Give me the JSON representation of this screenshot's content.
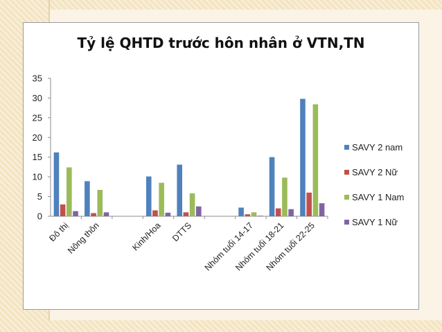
{
  "chart_data": {
    "type": "bar",
    "title": "Tỷ lệ QHTD trước hôn nhân ở VTN,TN",
    "categories": [
      "Đô thị",
      "Nông thôn",
      "",
      "Kinh/Hoa",
      "DTTS",
      "",
      "Nhóm tuổi 14-17",
      "Nhóm tuổi 18-21",
      "Nhóm tuổi 22-25"
    ],
    "series": [
      {
        "name": "SAVY 2 nam",
        "color": "#4f81bd",
        "values": [
          16.2,
          8.9,
          null,
          10.1,
          13.1,
          null,
          2.2,
          15.0,
          29.8
        ]
      },
      {
        "name": "SAVY 2 Nữ",
        "color": "#c0504d",
        "values": [
          3.0,
          0.8,
          null,
          1.5,
          1.0,
          null,
          0.5,
          2.0,
          6.0
        ]
      },
      {
        "name": "SAVY 1 Nam",
        "color": "#9bbb59",
        "values": [
          12.4,
          6.7,
          null,
          8.5,
          5.8,
          null,
          1.0,
          9.8,
          28.4
        ]
      },
      {
        "name": "SAVY 1 Nữ",
        "color": "#8064a2",
        "values": [
          1.3,
          1.0,
          null,
          0.9,
          2.5,
          null,
          0.0,
          1.8,
          3.3
        ]
      }
    ],
    "yticks": [
      "0",
      "5",
      "10",
      "15",
      "20",
      "25",
      "30",
      "35"
    ],
    "ylim": [
      0,
      35
    ],
    "legend_position": "right",
    "grid": false
  }
}
